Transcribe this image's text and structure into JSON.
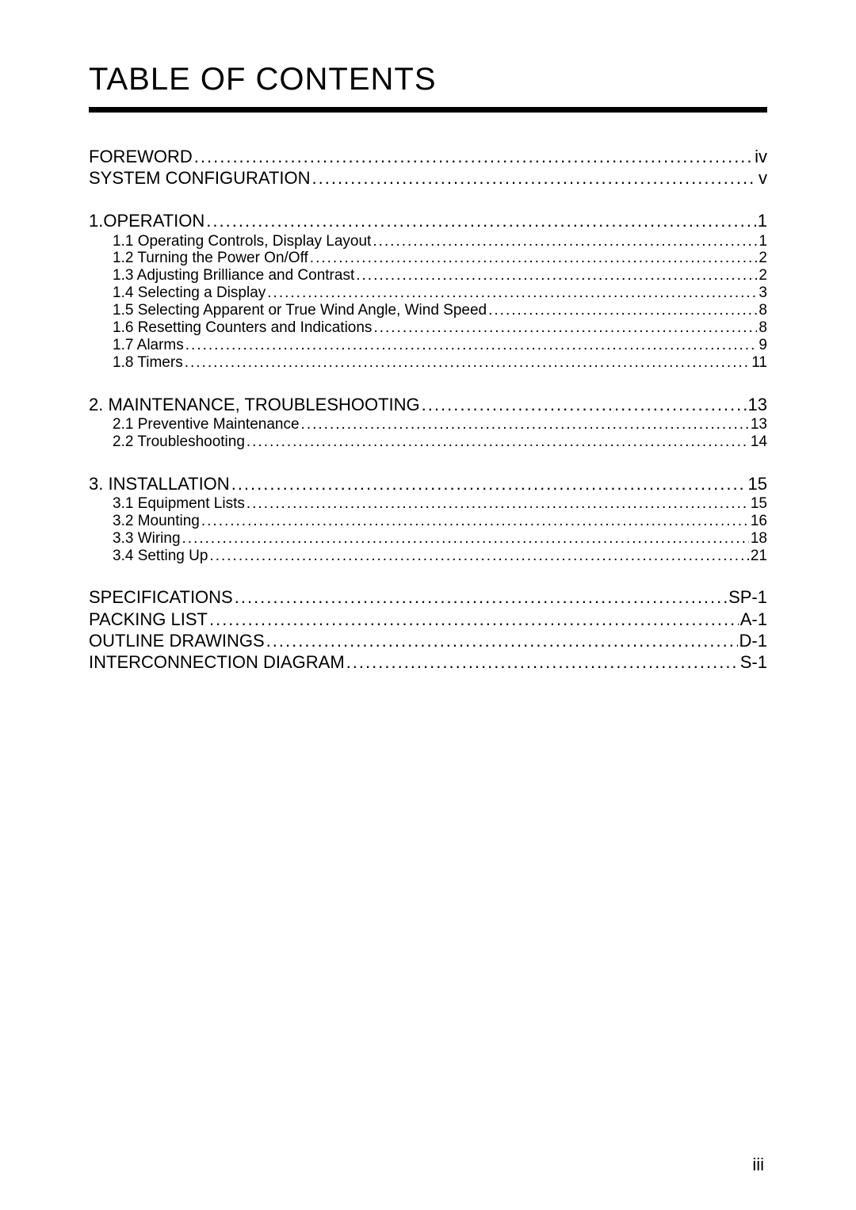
{
  "title": "TABLE OF CONTENTS",
  "pageNumber": "iii",
  "groups": [
    {
      "items": [
        {
          "level": 1,
          "label": "FOREWORD",
          "page": " iv"
        },
        {
          "level": 1,
          "label": "SYSTEM CONFIGURATION",
          "page": "v"
        }
      ]
    },
    {
      "items": [
        {
          "level": 1,
          "label": "1.OPERATION",
          "page": "1"
        },
        {
          "level": 2,
          "label": "1.1  Operating Controls, Display Layout",
          "page": "1"
        },
        {
          "level": 2,
          "label": "1.2  Turning the Power On/Off",
          "page": "2"
        },
        {
          "level": 2,
          "label": "1.3  Adjusting Brilliance and Contrast",
          "page": "2"
        },
        {
          "level": 2,
          "label": "1.4  Selecting a Display",
          "page": "3"
        },
        {
          "level": 2,
          "label": "1.5  Selecting Apparent or True Wind Angle, Wind Speed",
          "page": "8"
        },
        {
          "level": 2,
          "label": "1.6  Resetting Counters and Indications",
          "page": "8"
        },
        {
          "level": 2,
          "label": "1.7  Alarms",
          "page": "9"
        },
        {
          "level": 2,
          "label": "1.8  Timers",
          "page": "11"
        }
      ]
    },
    {
      "items": [
        {
          "level": 1,
          "label": "2. MAINTENANCE, TROUBLESHOOTING",
          "page": "13"
        },
        {
          "level": 2,
          "label": "2.1  Preventive Maintenance",
          "page": "13"
        },
        {
          "level": 2,
          "label": "2.2  Troubleshooting",
          "page": "14"
        }
      ]
    },
    {
      "items": [
        {
          "level": 1,
          "label": "3. INSTALLATION",
          "page": "15"
        },
        {
          "level": 2,
          "label": "3.1  Equipment Lists",
          "page": "15"
        },
        {
          "level": 2,
          "label": "3.2  Mounting",
          "page": "16"
        },
        {
          "level": 2,
          "label": "3.3  Wiring",
          "page": "18"
        },
        {
          "level": 2,
          "label": "3.4  Setting Up",
          "page": "21"
        }
      ]
    },
    {
      "items": [
        {
          "level": 1,
          "label": "SPECIFICATIONS",
          "page": "SP-1"
        },
        {
          "level": 1,
          "label": "PACKING LIST",
          "page": " A-1"
        },
        {
          "level": 1,
          "label": "OUTLINE DRAWINGS",
          "page": " D-1"
        },
        {
          "level": 1,
          "label": "INTERCONNECTION DIAGRAM",
          "page": " S-1"
        }
      ]
    }
  ]
}
